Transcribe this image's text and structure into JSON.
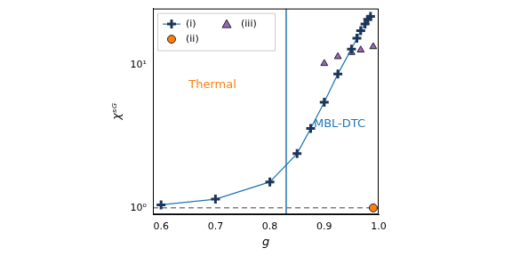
{
  "chart_data": {
    "type": "scatter",
    "x_label": "g",
    "y_label": "χˢᴳ",
    "log": "y",
    "grid": false,
    "legend": "upper left",
    "xlim": [
      0.585,
      1.0
    ],
    "xticks": [
      0.6,
      0.7,
      0.8,
      0.9,
      {
        "value": 1.0,
        "label": "1.0"
      }
    ],
    "ylim": [
      0.9,
      25
    ],
    "yticks": [
      {
        "value": 1,
        "label": "10⁰"
      },
      {
        "value": 10,
        "label": "10¹"
      }
    ],
    "series": [
      {
        "name": "(i)",
        "color": "#1f77b4",
        "marker": "plus",
        "line_style": "solid",
        "x": [
          0.6,
          0.7,
          0.8,
          0.85,
          0.875,
          0.9,
          0.925,
          0.95,
          0.96,
          0.967,
          0.975,
          0.98,
          0.985
        ],
        "values": [
          1.05,
          1.15,
          1.52,
          2.4,
          3.6,
          5.5,
          8.7,
          13,
          15.5,
          17.5,
          19.5,
          21,
          22
        ]
      },
      {
        "name": "(ii)",
        "color": "#ff7f0e",
        "marker": "circle",
        "x": [
          0.99
        ],
        "values": [
          1.0
        ]
      },
      {
        "name": "(iii)",
        "color": "#9467bd",
        "marker": "triangle",
        "x": [
          0.9,
          0.925,
          0.95,
          0.967,
          0.99
        ],
        "values": [
          10.3,
          11.5,
          12.3,
          12.8,
          13.5
        ]
      }
    ],
    "reference_lines": [
      {
        "axis": "x",
        "value": 0.83,
        "color": "#1f77b4",
        "line_style": "solid"
      },
      {
        "axis": "y",
        "value": 1,
        "color": "#808080",
        "line_style": "dashed"
      }
    ],
    "annotations": [
      {
        "text": "Thermal",
        "color": "#ff7f0e"
      },
      {
        "text": "MBL-DTC",
        "color": "#1f77b4"
      }
    ]
  }
}
